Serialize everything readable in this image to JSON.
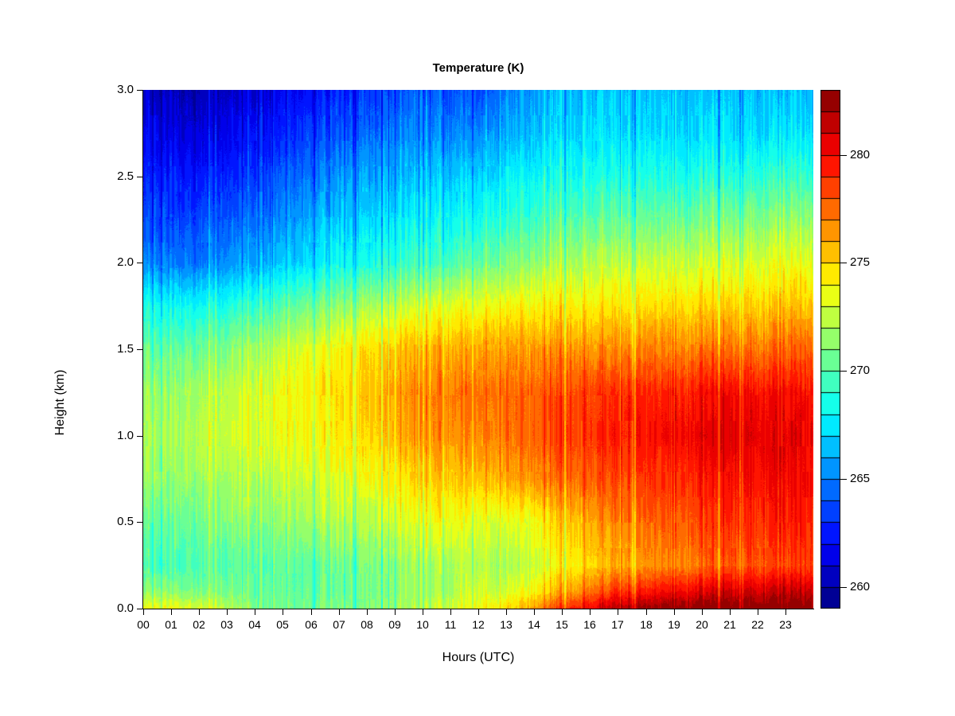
{
  "title": "Temperature (K)",
  "axes": {
    "x_label": "Hours (UTC)",
    "y_label": "Height (km)",
    "x_tick_labels": [
      "00",
      "01",
      "02",
      "03",
      "04",
      "05",
      "06",
      "07",
      "08",
      "09",
      "10",
      "11",
      "12",
      "13",
      "14",
      "15",
      "16",
      "17",
      "18",
      "19",
      "20",
      "21",
      "22",
      "23"
    ],
    "y_tick_labels": [
      "0.0",
      "0.5",
      "1.0",
      "1.5",
      "2.0",
      "2.5",
      "3.0"
    ],
    "y_tick_values": [
      0.0,
      0.5,
      1.0,
      1.5,
      2.0,
      2.5,
      3.0
    ],
    "colorbar_tick_labels": [
      "260",
      "265",
      "270",
      "275",
      "280"
    ],
    "colorbar_tick_values": [
      260,
      265,
      270,
      275,
      280
    ]
  },
  "chart_data": {
    "type": "heatmap",
    "title": "Temperature (K)",
    "xlabel": "Hours (UTC)",
    "ylabel": "Height (km)",
    "x_range_hours": [
      0,
      24
    ],
    "y_range_km": [
      0.0,
      3.0
    ],
    "value_range_k": [
      259,
      283
    ],
    "grid": false,
    "legend_position": "right-colorbar",
    "background": "#ffffff",
    "colorbar": {
      "levels": 24,
      "step_k": 1,
      "tick_values": [
        260,
        265,
        270,
        275,
        280
      ],
      "palette": [
        "#000095",
        "#0000BF",
        "#0000EA",
        "#0015FF",
        "#0040FF",
        "#006AFF",
        "#0095FF",
        "#00BFFF",
        "#00EAFF",
        "#15FFEA",
        "#40FFBF",
        "#6AFF95",
        "#95FF6A",
        "#BFFF40",
        "#EAFF15",
        "#FFEA00",
        "#FFBF00",
        "#FF9500",
        "#FF6A00",
        "#FF4000",
        "#FF1500",
        "#EA0000",
        "#BF0000",
        "#950000"
      ]
    },
    "hours": [
      0,
      1,
      2,
      3,
      4,
      5,
      6,
      7,
      8,
      9,
      10,
      11,
      12,
      13,
      14,
      15,
      16,
      17,
      18,
      19,
      20,
      21,
      22,
      23
    ],
    "heights_km": [
      3.0,
      2.75,
      2.5,
      2.25,
      2.0,
      1.75,
      1.5,
      1.25,
      1.0,
      0.75,
      0.5,
      0.25,
      0.1,
      0.0
    ],
    "values_k": [
      [
        260.8,
        260.3,
        260.2,
        260.5,
        261.2,
        261.8,
        262.3,
        262.8,
        263.3,
        263.8,
        264.2,
        264.0,
        263.8,
        264.8,
        265.8,
        266.3,
        266.5,
        266.6,
        266.5,
        266.4,
        266.4,
        266.5,
        266.5,
        266.5
      ],
      [
        261.8,
        261.4,
        261.3,
        261.6,
        262.2,
        262.8,
        263.4,
        264.0,
        264.5,
        264.9,
        265.2,
        265.1,
        265.3,
        266.0,
        266.6,
        267.0,
        267.2,
        267.3,
        267.2,
        267.1,
        267.1,
        267.2,
        267.3,
        267.4
      ],
      [
        262.8,
        262.5,
        262.4,
        262.8,
        263.4,
        264.1,
        264.8,
        265.4,
        265.9,
        266.3,
        266.6,
        266.7,
        267.0,
        267.6,
        268.1,
        268.4,
        268.5,
        268.6,
        268.6,
        268.5,
        268.6,
        268.8,
        269.0,
        269.2
      ],
      [
        263.9,
        263.6,
        263.6,
        264.0,
        264.7,
        265.4,
        266.1,
        266.7,
        267.2,
        267.6,
        267.9,
        268.1,
        268.4,
        269.0,
        269.5,
        269.9,
        270.2,
        270.4,
        270.5,
        270.5,
        270.6,
        270.8,
        271.1,
        271.4
      ],
      [
        265.2,
        264.9,
        264.9,
        265.3,
        266.0,
        266.8,
        267.5,
        268.1,
        268.6,
        269.1,
        269.5,
        269.8,
        270.3,
        270.9,
        271.5,
        271.9,
        272.2,
        272.4,
        272.5,
        272.6,
        272.7,
        272.9,
        273.2,
        273.5
      ],
      [
        268.5,
        268.2,
        268.3,
        268.7,
        269.4,
        270.1,
        270.8,
        271.4,
        272.0,
        272.6,
        273.1,
        273.4,
        273.7,
        273.9,
        274.1,
        274.3,
        274.4,
        274.5,
        274.6,
        274.7,
        274.8,
        275.0,
        275.2,
        275.4
      ],
      [
        270.6,
        270.3,
        270.6,
        271.1,
        271.9,
        272.7,
        273.4,
        274.0,
        274.7,
        275.3,
        275.7,
        275.9,
        276.1,
        276.3,
        276.4,
        276.5,
        276.6,
        276.7,
        276.8,
        276.9,
        277.0,
        277.2,
        277.4,
        277.6
      ],
      [
        271.8,
        271.5,
        271.9,
        272.4,
        273.1,
        273.8,
        274.3,
        274.8,
        275.5,
        276.2,
        276.8,
        277.2,
        277.4,
        277.5,
        277.8,
        278.2,
        278.6,
        278.9,
        279.1,
        279.3,
        279.6,
        279.9,
        279.9,
        279.8
      ],
      [
        272.2,
        271.9,
        272.3,
        272.7,
        273.2,
        273.6,
        273.9,
        274.3,
        275.0,
        275.8,
        276.4,
        276.7,
        276.8,
        277.2,
        277.8,
        278.4,
        278.9,
        279.3,
        279.6,
        279.9,
        280.2,
        280.6,
        280.6,
        280.5
      ],
      [
        271.6,
        271.4,
        271.7,
        272.0,
        272.4,
        272.7,
        272.9,
        273.2,
        273.8,
        274.4,
        274.9,
        275.2,
        275.5,
        276.0,
        276.7,
        277.4,
        277.9,
        278.3,
        278.6,
        278.9,
        279.3,
        279.7,
        279.9,
        280.0
      ],
      [
        270.6,
        270.4,
        270.7,
        271.0,
        271.3,
        271.6,
        271.8,
        272.0,
        272.5,
        273.0,
        273.4,
        273.7,
        273.3,
        273.0,
        273.8,
        275.0,
        276.2,
        277.0,
        277.4,
        277.8,
        278.3,
        278.8,
        279.1,
        279.4
      ],
      [
        269.8,
        269.6,
        269.8,
        270.0,
        270.1,
        270.2,
        270.3,
        270.5,
        270.9,
        271.3,
        271.7,
        272.0,
        272.3,
        271.8,
        272.8,
        274.0,
        275.0,
        275.8,
        276.3,
        276.8,
        277.3,
        277.8,
        278.1,
        278.4
      ],
      [
        271.5,
        271.3,
        271.0,
        270.7,
        270.5,
        270.4,
        270.4,
        270.5,
        270.8,
        271.2,
        271.7,
        272.2,
        272.9,
        272.8,
        274.2,
        275.8,
        277.5,
        278.8,
        279.5,
        280.0,
        280.5,
        280.9,
        281.1,
        281.3
      ],
      [
        273.8,
        273.6,
        273.2,
        272.4,
        271.2,
        270.9,
        270.8,
        270.9,
        271.2,
        271.6,
        272.2,
        272.9,
        273.8,
        274.5,
        276.5,
        278.5,
        280.5,
        281.8,
        282.3,
        282.6,
        282.8,
        282.9,
        283.0,
        283.0
      ]
    ],
    "noise_std_k": 0.8
  }
}
